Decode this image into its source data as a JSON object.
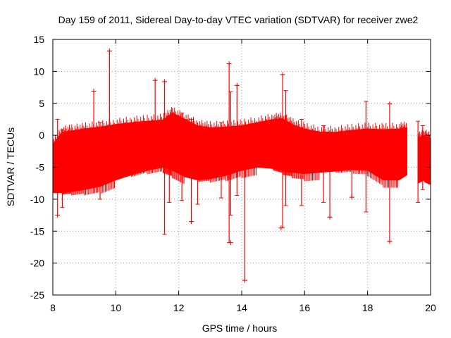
{
  "chart_data": {
    "type": "scatter",
    "title": "Day 159 of 2011, Sidereal Day-to-day VTEC variation (SDTVAR) for receiver zwe2",
    "xlabel": "GPS time / hours",
    "ylabel": "SDTVAR / TECUs",
    "xlim": [
      8,
      20
    ],
    "ylim": [
      -25,
      15
    ],
    "x_ticks": [
      8,
      10,
      12,
      14,
      16,
      18,
      20
    ],
    "y_ticks": [
      15,
      10,
      5,
      0,
      -5,
      -10,
      -15,
      -20,
      -25
    ],
    "grid": true,
    "series_color": "#ff0000",
    "band": {
      "x": [
        8.0,
        8.3,
        8.6,
        9.0,
        9.5,
        10.0,
        10.5,
        11.0,
        11.5,
        11.8,
        12.2,
        12.6,
        13.0,
        13.5,
        14.0,
        14.5,
        15.0,
        15.3,
        15.6,
        16.0,
        16.5,
        17.0,
        17.5,
        18.0,
        18.5,
        19.0,
        19.25
      ],
      "upper": [
        -1.5,
        0.5,
        0.7,
        1.0,
        1.3,
        1.7,
        2.0,
        2.2,
        2.4,
        3.5,
        2.5,
        1.5,
        1.2,
        1.3,
        1.5,
        2.0,
        2.5,
        2.6,
        1.7,
        1.0,
        0.5,
        0.5,
        0.8,
        1.0,
        0.9,
        1.0,
        1.2
      ],
      "lower": [
        -9.0,
        -9.0,
        -8.8,
        -8.5,
        -8.0,
        -7.0,
        -6.2,
        -5.5,
        -5.0,
        -5.5,
        -6.5,
        -7.0,
        -6.8,
        -6.3,
        -5.5,
        -5.0,
        -5.2,
        -5.6,
        -5.8,
        -6.0,
        -5.8,
        -5.6,
        -5.4,
        -5.5,
        -7.0,
        -7.0,
        -6.2
      ]
    },
    "band2": {
      "x": [
        19.6,
        19.8,
        20.0
      ],
      "upper": [
        -0.5,
        0.0,
        -0.5
      ],
      "lower": [
        -7.5,
        -7.0,
        -7.5
      ]
    },
    "spikes": [
      [
        8.15,
        2.5,
        -12.5
      ],
      [
        8.3,
        0.8,
        -11.3
      ],
      [
        9.3,
        6.9,
        -1.0
      ],
      [
        9.5,
        2.0,
        -10.0
      ],
      [
        9.8,
        13.2,
        -0.5
      ],
      [
        11.25,
        8.6,
        0.0
      ],
      [
        11.55,
        8.4,
        -15.5
      ],
      [
        11.7,
        3.0,
        -10.5
      ],
      [
        12.1,
        3.5,
        -10.2
      ],
      [
        12.4,
        2.5,
        -13.5
      ],
      [
        12.6,
        1.2,
        -10.8
      ],
      [
        13.35,
        2.0,
        -9.8
      ],
      [
        13.6,
        11.2,
        -16.8
      ],
      [
        13.65,
        6.8,
        -12.5
      ],
      [
        13.85,
        7.8,
        -9.4
      ],
      [
        14.1,
        1.5,
        -22.7
      ],
      [
        15.3,
        9.5,
        -14.5
      ],
      [
        15.4,
        7.0,
        -11.0
      ],
      [
        15.9,
        2.5,
        -11.0
      ],
      [
        16.6,
        1.5,
        -10.5
      ],
      [
        16.8,
        0.5,
        -12.8
      ],
      [
        17.5,
        0.5,
        -9.7
      ],
      [
        17.95,
        5.3,
        -12.0
      ],
      [
        18.7,
        4.9,
        -16.6
      ],
      [
        19.6,
        2.2,
        -10.5
      ],
      [
        19.75,
        1.5,
        -8.5
      ]
    ],
    "outliers": [
      [
        9.3,
        6.9
      ],
      [
        9.8,
        13.2
      ],
      [
        11.25,
        8.6
      ],
      [
        11.55,
        8.4
      ],
      [
        13.6,
        11.2
      ],
      [
        13.85,
        7.8
      ],
      [
        14.1,
        -22.7
      ],
      [
        15.3,
        9.5
      ],
      [
        16.8,
        -12.8
      ],
      [
        17.5,
        -9.7
      ],
      [
        18.7,
        -16.6
      ],
      [
        18.7,
        4.9
      ],
      [
        15.25,
        -14.5
      ],
      [
        8.15,
        -12.5
      ],
      [
        12.4,
        -13.5
      ],
      [
        13.65,
        -16.8
      ]
    ]
  }
}
